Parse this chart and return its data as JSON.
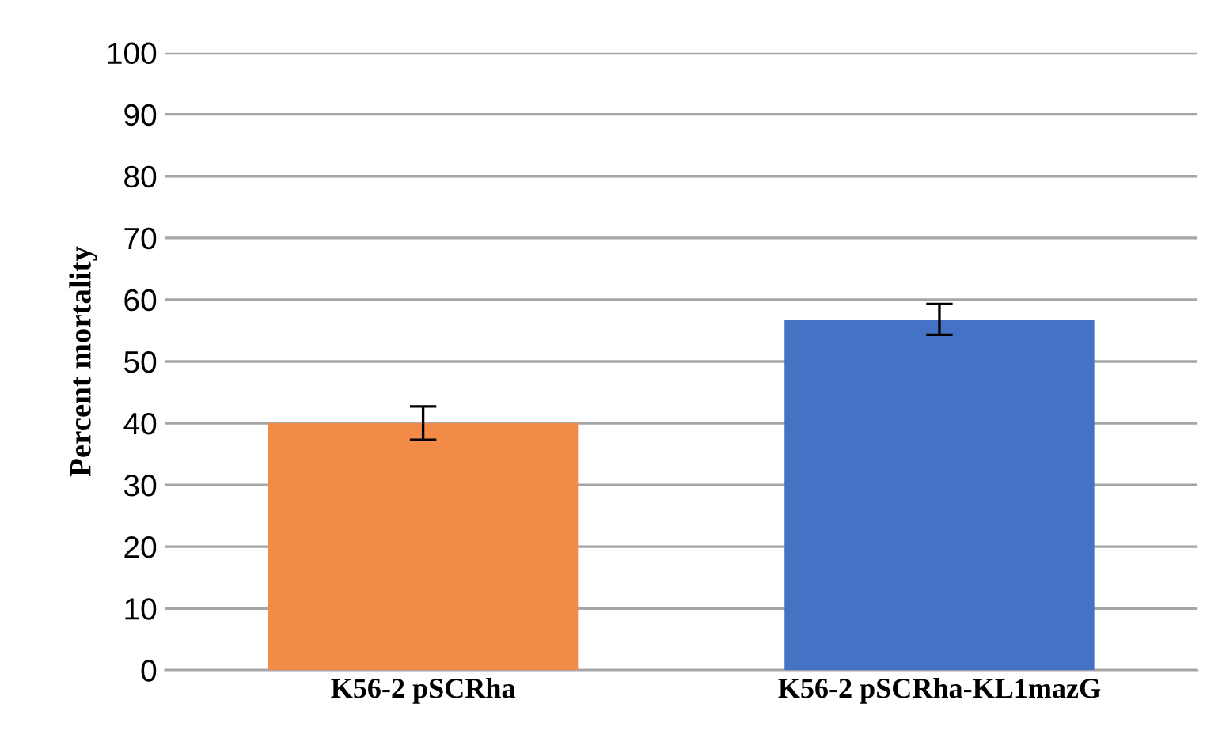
{
  "chart_data": {
    "type": "bar",
    "ylabel": "Percent mortality",
    "categories": [
      "K56-2 pSCRha",
      "K56-2 pSCRha-KL1mazG"
    ],
    "values": [
      40,
      56.8
    ],
    "colors": [
      "#f28a48",
      "#4472c4"
    ],
    "errors": [
      2.7,
      2.5
    ],
    "ylim": [
      0,
      100
    ],
    "yticks": [
      0,
      10,
      20,
      30,
      40,
      50,
      60,
      70,
      80,
      90,
      100
    ],
    "grid": "y"
  }
}
